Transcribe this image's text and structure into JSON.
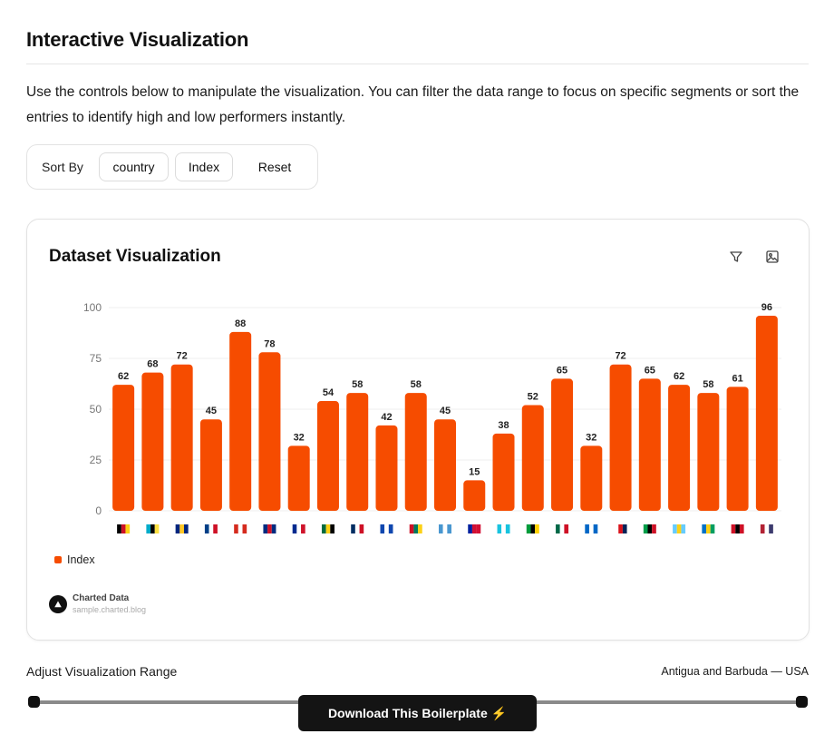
{
  "page": {
    "title": "Interactive Visualization",
    "intro": "Use the controls below to manipulate the visualization. You can filter the data range to focus on specific segments or sort the entries to identify high and low performers instantly."
  },
  "controls": {
    "sort_label": "Sort By",
    "country_label": "country",
    "index_label": "Index",
    "reset_label": "Reset"
  },
  "card": {
    "title": "Dataset Visualization",
    "filter_icon": "filter-icon",
    "image_icon": "image-icon",
    "legend_label": "Index",
    "brand_name": "Charted Data",
    "brand_url": "sample.charted.blog"
  },
  "colors": {
    "bar": "#F64C00",
    "grid": "#efefef",
    "axis_text": "#777777"
  },
  "chart_data": {
    "type": "bar",
    "categories": [
      "Antigua and Barbuda",
      "Bahamas",
      "Barbados",
      "Belize",
      "Canada",
      "Costa Rica",
      "Cuba",
      "Dominica",
      "Dominican Republic",
      "El Salvador",
      "Grenada",
      "Guatemala",
      "Haiti",
      "Honduras",
      "Jamaica",
      "Mexico",
      "Nicaragua",
      "Panama",
      "Saint Kitts and Nevis",
      "Saint Lucia",
      "Saint Vincent and the Grenadines",
      "Trinidad and Tobago",
      "USA"
    ],
    "series": [
      {
        "name": "Index",
        "values": [
          62,
          68,
          72,
          45,
          88,
          78,
          32,
          54,
          58,
          42,
          58,
          45,
          15,
          38,
          52,
          65,
          32,
          72,
          65,
          62,
          58,
          61,
          96
        ]
      }
    ],
    "yticks": [
      0,
      25,
      50,
      75,
      100
    ],
    "ylim": [
      0,
      100
    ],
    "grid": true,
    "legend": "bottom-left",
    "title": "Dataset Visualization"
  },
  "range": {
    "label": "Adjust Visualization Range",
    "value": "Antigua and Barbuda — USA",
    "start": 0,
    "end": 1
  },
  "download": {
    "label": "Download This Boilerplate ⚡"
  }
}
